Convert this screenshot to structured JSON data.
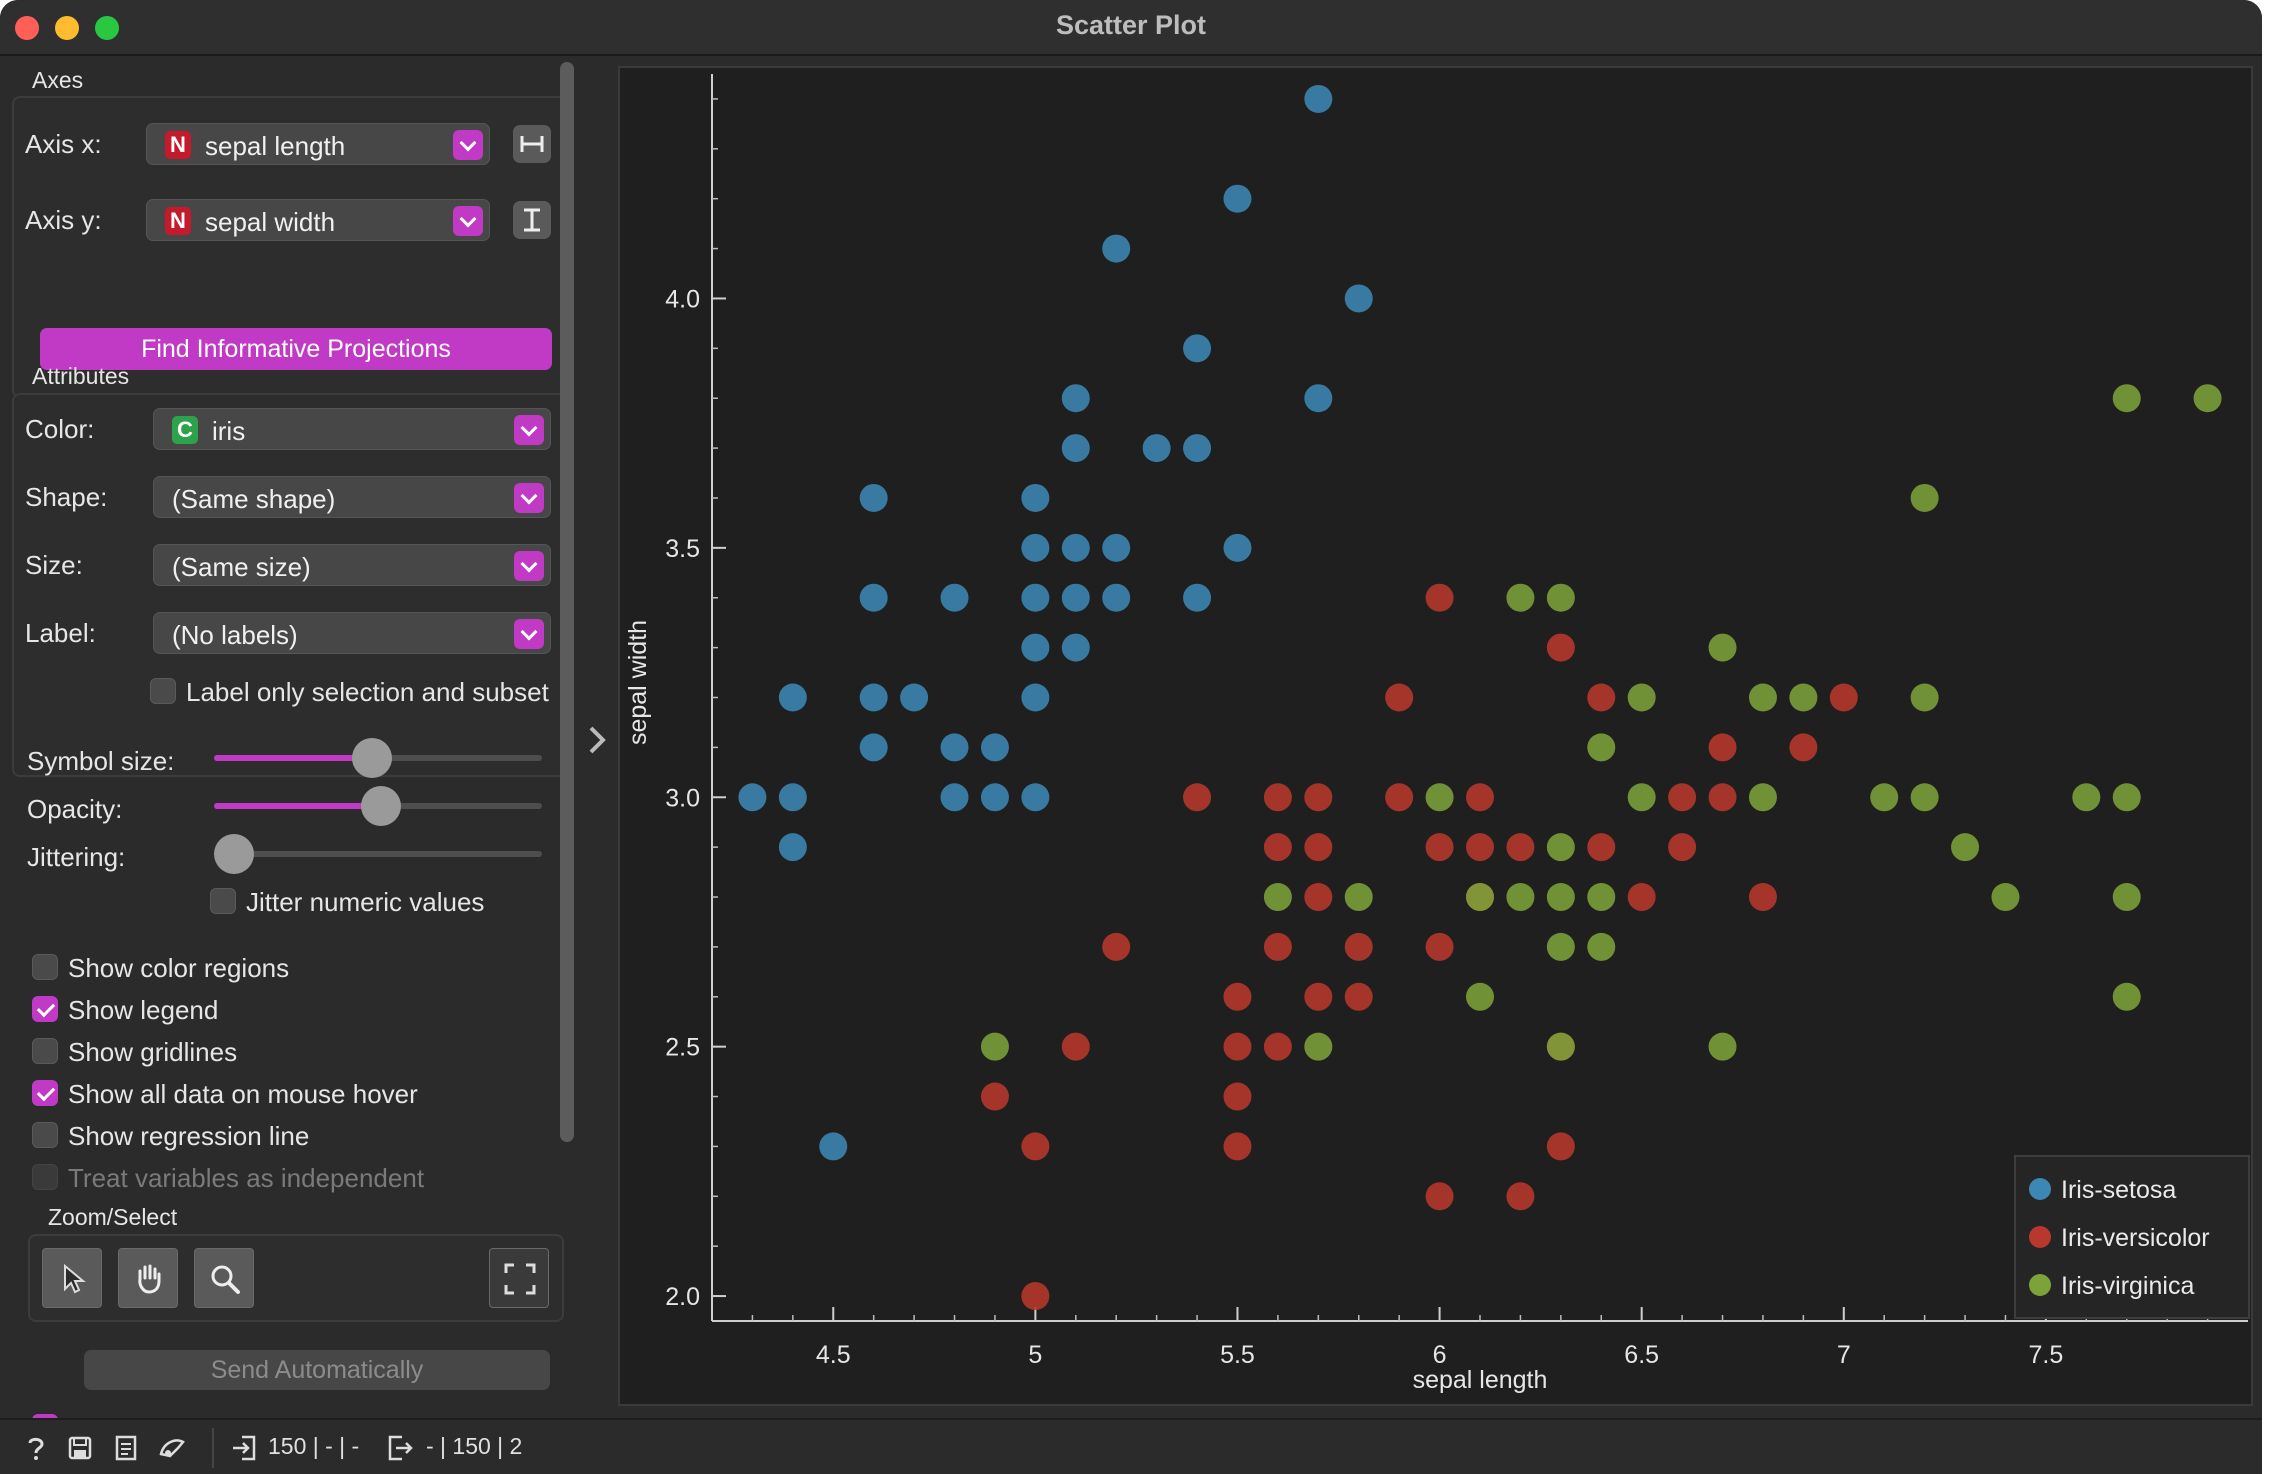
{
  "window": {
    "title": "Scatter Plot"
  },
  "axes": {
    "section_title": "Axes",
    "x_label": "Axis x:",
    "x_badge": "N",
    "x_value": "sepal length",
    "y_label": "Axis y:",
    "y_badge": "N",
    "y_value": "sepal width",
    "find_projections": "Find Informative Projections"
  },
  "attributes": {
    "section_title": "Attributes",
    "color_label": "Color:",
    "color_badge": "C",
    "color_value": "iris",
    "shape_label": "Shape:",
    "shape_value": "(Same shape)",
    "size_label": "Size:",
    "size_value": "(Same size)",
    "label_label": "Label:",
    "label_value": "(No labels)",
    "label_only_selection": "Label only selection and subset"
  },
  "sliders": {
    "symbol_size_label": "Symbol size:",
    "symbol_size_value": 0.48,
    "opacity_label": "Opacity:",
    "opacity_value": 0.51,
    "jittering_label": "Jittering:",
    "jittering_value": 0.0,
    "jitter_numeric": "Jitter numeric values"
  },
  "options": [
    {
      "label": "Show color regions",
      "checked": false,
      "disabled": false
    },
    {
      "label": "Show legend",
      "checked": true,
      "disabled": false
    },
    {
      "label": "Show gridlines",
      "checked": false,
      "disabled": false
    },
    {
      "label": "Show all data on mouse hover",
      "checked": true,
      "disabled": false
    },
    {
      "label": "Show regression line",
      "checked": false,
      "disabled": false
    },
    {
      "label": "Treat variables as independent",
      "checked": false,
      "disabled": true
    }
  ],
  "zoom_select": {
    "section_title": "Zoom/Select"
  },
  "send": {
    "auto_checked": true,
    "label": "Send Automatically"
  },
  "status": {
    "input": "150 | - | -",
    "output": "- | 150 | 2"
  },
  "colors": {
    "accent": "#c13ac6",
    "setosa": "#3c87b4",
    "versicolor": "#b8382e",
    "virginica": "#7da23a"
  },
  "chart_data": {
    "type": "scatter",
    "xlabel": "sepal length",
    "ylabel": "sepal width",
    "xlim": [
      4.2,
      8.0
    ],
    "ylim": [
      1.95,
      4.45
    ],
    "xticks": [
      "4.5",
      "5",
      "5.5",
      "6",
      "6.5",
      "7",
      "7.5"
    ],
    "xtick_values": [
      4.5,
      5.0,
      5.5,
      6.0,
      6.5,
      7.0,
      7.5
    ],
    "yticks": [
      "2.0",
      "2.5",
      "3.0",
      "3.5",
      "4.0"
    ],
    "ytick_values": [
      2.0,
      2.5,
      3.0,
      3.5,
      4.0
    ],
    "grid": false,
    "legend_position": "bottom-right",
    "series": [
      {
        "name": "Iris-setosa",
        "color": "#3c87b4",
        "points": [
          [
            4.3,
            3.0
          ],
          [
            4.4,
            2.9
          ],
          [
            4.4,
            3.0
          ],
          [
            4.4,
            3.2
          ],
          [
            4.5,
            2.3
          ],
          [
            4.6,
            3.1
          ],
          [
            4.6,
            3.2
          ],
          [
            4.6,
            3.4
          ],
          [
            4.6,
            3.6
          ],
          [
            4.7,
            3.2
          ],
          [
            4.8,
            3.0
          ],
          [
            4.8,
            3.1
          ],
          [
            4.8,
            3.4
          ],
          [
            4.9,
            3.0
          ],
          [
            4.9,
            3.1
          ],
          [
            5.0,
            3.0
          ],
          [
            5.0,
            3.2
          ],
          [
            5.0,
            3.3
          ],
          [
            5.0,
            3.4
          ],
          [
            5.0,
            3.5
          ],
          [
            5.0,
            3.6
          ],
          [
            5.1,
            3.3
          ],
          [
            5.1,
            3.4
          ],
          [
            5.1,
            3.5
          ],
          [
            5.1,
            3.7
          ],
          [
            5.1,
            3.8
          ],
          [
            5.2,
            3.4
          ],
          [
            5.2,
            3.5
          ],
          [
            5.2,
            4.1
          ],
          [
            5.3,
            3.7
          ],
          [
            5.4,
            3.4
          ],
          [
            5.4,
            3.7
          ],
          [
            5.4,
            3.9
          ],
          [
            5.5,
            3.5
          ],
          [
            5.5,
            4.2
          ],
          [
            5.7,
            3.8
          ],
          [
            5.7,
            4.4
          ],
          [
            5.8,
            4.0
          ]
        ]
      },
      {
        "name": "Iris-versicolor",
        "color": "#b8382e",
        "points": [
          [
            4.9,
            2.4
          ],
          [
            5.0,
            2.0
          ],
          [
            5.0,
            2.3
          ],
          [
            5.1,
            2.5
          ],
          [
            5.2,
            2.7
          ],
          [
            5.4,
            3.0
          ],
          [
            5.5,
            2.3
          ],
          [
            5.5,
            2.4
          ],
          [
            5.5,
            2.5
          ],
          [
            5.5,
            2.6
          ],
          [
            5.6,
            2.5
          ],
          [
            5.6,
            2.7
          ],
          [
            5.6,
            2.9
          ],
          [
            5.6,
            3.0
          ],
          [
            5.7,
            2.6
          ],
          [
            5.7,
            2.8
          ],
          [
            5.7,
            2.9
          ],
          [
            5.7,
            3.0
          ],
          [
            5.8,
            2.6
          ],
          [
            5.8,
            2.7
          ],
          [
            5.9,
            3.0
          ],
          [
            5.9,
            3.2
          ],
          [
            6.0,
            2.2
          ],
          [
            6.0,
            2.7
          ],
          [
            6.0,
            2.9
          ],
          [
            6.0,
            3.4
          ],
          [
            6.1,
            2.8
          ],
          [
            6.1,
            2.9
          ],
          [
            6.1,
            3.0
          ],
          [
            6.2,
            2.2
          ],
          [
            6.2,
            2.9
          ],
          [
            6.3,
            2.3
          ],
          [
            6.3,
            2.5
          ],
          [
            6.3,
            3.3
          ],
          [
            6.4,
            2.9
          ],
          [
            6.4,
            3.2
          ],
          [
            6.5,
            2.8
          ],
          [
            6.6,
            2.9
          ],
          [
            6.6,
            3.0
          ],
          [
            6.7,
            3.0
          ],
          [
            6.7,
            3.1
          ],
          [
            6.8,
            2.8
          ],
          [
            6.9,
            3.1
          ],
          [
            7.0,
            3.2
          ]
        ]
      },
      {
        "name": "Iris-virginica",
        "color": "#7da23a",
        "points": [
          [
            4.9,
            2.5
          ],
          [
            5.6,
            2.8
          ],
          [
            5.7,
            2.5
          ],
          [
            5.8,
            2.8
          ],
          [
            6.0,
            3.0
          ],
          [
            6.1,
            2.6
          ],
          [
            6.1,
            2.8
          ],
          [
            6.2,
            2.8
          ],
          [
            6.2,
            3.4
          ],
          [
            6.3,
            2.5
          ],
          [
            6.3,
            2.7
          ],
          [
            6.3,
            2.8
          ],
          [
            6.3,
            2.9
          ],
          [
            6.3,
            3.4
          ],
          [
            6.4,
            2.7
          ],
          [
            6.4,
            2.8
          ],
          [
            6.4,
            3.1
          ],
          [
            6.5,
            3.0
          ],
          [
            6.5,
            3.2
          ],
          [
            6.7,
            2.5
          ],
          [
            6.7,
            3.3
          ],
          [
            6.8,
            3.0
          ],
          [
            6.8,
            3.2
          ],
          [
            6.9,
            3.2
          ],
          [
            7.1,
            3.0
          ],
          [
            7.2,
            3.0
          ],
          [
            7.2,
            3.2
          ],
          [
            7.2,
            3.6
          ],
          [
            7.3,
            2.9
          ],
          [
            7.4,
            2.8
          ],
          [
            7.6,
            3.0
          ],
          [
            7.7,
            2.6
          ],
          [
            7.7,
            2.8
          ],
          [
            7.7,
            3.0
          ],
          [
            7.7,
            3.8
          ],
          [
            7.9,
            3.8
          ]
        ]
      }
    ]
  }
}
